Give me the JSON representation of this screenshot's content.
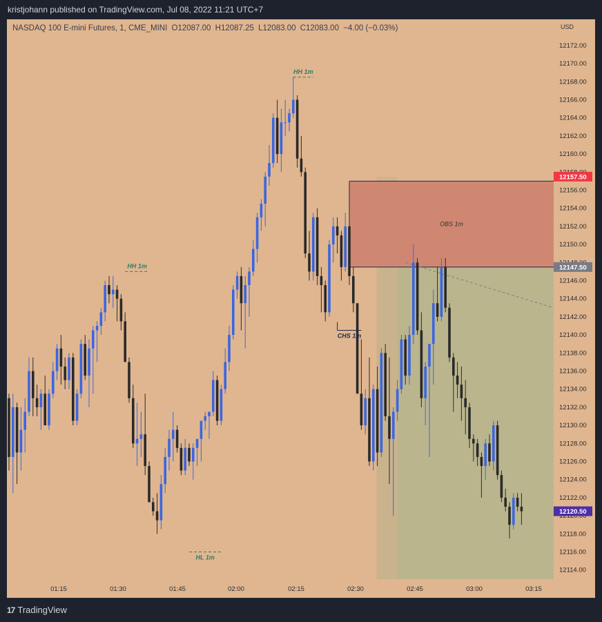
{
  "header": {
    "published": "kristjohann published on TradingView.com, Jul 08, 2022 11:21 UTC+7"
  },
  "symbol_bar": {
    "name": "NASDAQ 100 E-mini Futures, 1, CME_MINI",
    "open": "O12087.00",
    "high": "H12087.25",
    "low": "L12083.00",
    "close": "C12083.00",
    "change": "−4.00 (−0.03%)"
  },
  "currency": "USD",
  "footer": {
    "brand": "TradingView",
    "logo_mark": "17"
  },
  "colors": {
    "background": "#e0b690",
    "up_candle": "#3b66e0",
    "down_candle": "#2a2a2a",
    "obs_zone": "#cd8571",
    "green_zone": "#b8b58e",
    "label_green": "#2e7d66",
    "price_red": "#f23645",
    "price_gray": "#787b86",
    "price_purple": "#4d2ea6"
  },
  "chart_data": {
    "type": "candlestick",
    "title": "NASDAQ 100 E-mini Futures, 1, CME_MINI",
    "interval": "1",
    "x_ticks": [
      "01:15",
      "01:30",
      "01:45",
      "02:00",
      "02:15",
      "02:30",
      "02:45",
      "03:00",
      "03:15"
    ],
    "y_ticks": [
      12114.0,
      12116.0,
      12118.0,
      12120.0,
      12122.0,
      12124.0,
      12126.0,
      12128.0,
      12130.0,
      12132.0,
      12134.0,
      12136.0,
      12138.0,
      12140.0,
      12142.0,
      12144.0,
      12146.0,
      12148.0,
      12150.0,
      12152.0,
      12154.0,
      12156.0,
      12158.0,
      12160.0,
      12162.0,
      12164.0,
      12166.0,
      12168.0,
      12170.0,
      12172.0
    ],
    "ylim": [
      12113.0,
      12173.5
    ],
    "first_bar_time": "01:08",
    "candles_ohlc": [
      [
        12133.0,
        12133.5,
        12125.0,
        12126.5
      ],
      [
        12126.5,
        12133.5,
        12122.5,
        12132.0
      ],
      [
        12132.0,
        12132.5,
        12123.5,
        12127.0
      ],
      [
        12127.0,
        12132.0,
        12125.0,
        12129.5
      ],
      [
        12129.5,
        12133.0,
        12127.0,
        12131.5
      ],
      [
        12131.5,
        12137.5,
        12131.0,
        12136.0
      ],
      [
        12136.0,
        12137.5,
        12131.0,
        12133.0
      ],
      [
        12133.0,
        12134.5,
        12131.0,
        12132.0
      ],
      [
        12132.0,
        12134.0,
        12129.5,
        12133.5
      ],
      [
        12133.5,
        12135.5,
        12131.0,
        12130.0
      ],
      [
        12130.0,
        12134.0,
        12129.5,
        12133.5
      ],
      [
        12133.5,
        12137.0,
        12133.0,
        12136.0
      ],
      [
        12136.0,
        12139.0,
        12135.0,
        12138.5
      ],
      [
        12138.5,
        12140.0,
        12134.5,
        12136.5
      ],
      [
        12136.5,
        12137.5,
        12134.0,
        12135.0
      ],
      [
        12135.0,
        12138.0,
        12134.0,
        12137.5
      ],
      [
        12137.5,
        12138.0,
        12130.0,
        12130.5
      ],
      [
        12130.5,
        12134.0,
        12130.0,
        12133.5
      ],
      [
        12133.5,
        12139.5,
        12133.0,
        12139.0
      ],
      [
        12139.0,
        12140.0,
        12135.0,
        12135.5
      ],
      [
        12135.5,
        12139.5,
        12132.0,
        12138.5
      ],
      [
        12138.5,
        12141.0,
        12133.5,
        12140.5
      ],
      [
        12140.5,
        12141.5,
        12137.0,
        12141.0
      ],
      [
        12141.0,
        12143.0,
        12140.0,
        12142.5
      ],
      [
        12142.5,
        12146.0,
        12141.5,
        12145.5
      ],
      [
        12145.5,
        12146.5,
        12143.5,
        12144.5
      ],
      [
        12144.5,
        12146.5,
        12143.0,
        12145.0
      ],
      [
        12145.0,
        12145.5,
        12141.5,
        12144.0
      ],
      [
        12144.0,
        12144.5,
        12140.5,
        12141.5
      ],
      [
        12141.5,
        12142.5,
        12139.0,
        12137.0
      ],
      [
        12137.0,
        12137.5,
        12132.5,
        12133.0
      ],
      [
        12133.0,
        12134.5,
        12127.5,
        12128.0
      ],
      [
        12128.0,
        12132.5,
        12125.5,
        12128.5
      ],
      [
        12128.5,
        12131.5,
        12126.5,
        12129.0
      ],
      [
        12129.0,
        12133.5,
        12124.5,
        12125.5
      ],
      [
        12125.5,
        12126.0,
        12121.5,
        12121.5
      ],
      [
        12121.5,
        12122.0,
        12120.0,
        12120.5
      ],
      [
        12120.5,
        12122.5,
        12118.0,
        12119.5
      ],
      [
        12119.5,
        12124.5,
        12118.5,
        12123.5
      ],
      [
        12123.5,
        12127.5,
        12122.5,
        12126.5
      ],
      [
        12126.5,
        12129.5,
        12125.0,
        12128.5
      ],
      [
        12128.5,
        12131.5,
        12126.0,
        12129.5
      ],
      [
        12129.5,
        12130.0,
        12127.0,
        12127.5
      ],
      [
        12127.5,
        12128.0,
        12124.5,
        12125.0
      ],
      [
        12125.0,
        12128.5,
        12124.5,
        12127.5
      ],
      [
        12127.5,
        12128.0,
        12125.5,
        12126.0
      ],
      [
        12126.0,
        12128.0,
        12124.0,
        12127.5
      ],
      [
        12127.5,
        12128.5,
        12125.5,
        12128.5
      ],
      [
        12128.5,
        12130.5,
        12126.0,
        12130.5
      ],
      [
        12130.5,
        12131.5,
        12129.5,
        12131.0
      ],
      [
        12131.0,
        12131.5,
        12128.5,
        12131.5
      ],
      [
        12131.5,
        12136.0,
        12131.0,
        12135.0
      ],
      [
        12135.0,
        12135.5,
        12130.0,
        12130.5
      ],
      [
        12130.5,
        12134.5,
        12130.0,
        12134.0
      ],
      [
        12134.0,
        12138.5,
        12133.5,
        12137.0
      ],
      [
        12137.0,
        12141.0,
        12136.0,
        12140.0
      ],
      [
        12140.0,
        12145.5,
        12139.5,
        12145.0
      ],
      [
        12145.0,
        12147.0,
        12144.0,
        12146.5
      ],
      [
        12146.5,
        12147.5,
        12140.5,
        12143.5
      ],
      [
        12143.5,
        12146.5,
        12138.5,
        12145.5
      ],
      [
        12145.5,
        12147.5,
        12142.0,
        12147.0
      ],
      [
        12147.0,
        12150.5,
        12146.5,
        12149.5
      ],
      [
        12149.5,
        12153.5,
        12148.0,
        12153.0
      ],
      [
        12153.0,
        12155.0,
        12151.5,
        12154.5
      ],
      [
        12154.5,
        12158.0,
        12152.0,
        12157.5
      ],
      [
        12157.5,
        12161.0,
        12156.5,
        12159.0
      ],
      [
        12159.0,
        12164.5,
        12158.5,
        12164.0
      ],
      [
        12164.0,
        12166.0,
        12159.0,
        12160.0
      ],
      [
        12160.0,
        12165.0,
        12158.0,
        12163.5
      ],
      [
        12163.5,
        12166.0,
        12162.0,
        12163.5
      ],
      [
        12163.5,
        12165.0,
        12162.5,
        12164.5
      ],
      [
        12164.5,
        12168.5,
        12164.0,
        12166.0
      ],
      [
        12166.0,
        12166.5,
        12158.5,
        12159.5
      ],
      [
        12159.5,
        12162.0,
        12157.5,
        12158.0
      ],
      [
        12158.0,
        12158.5,
        12148.5,
        12149.0
      ],
      [
        12149.0,
        12151.5,
        12146.0,
        12147.0
      ],
      [
        12147.0,
        12153.5,
        12146.0,
        12153.0
      ],
      [
        12153.0,
        12154.0,
        12145.5,
        12146.5
      ],
      [
        12146.5,
        12147.5,
        12142.5,
        12145.5
      ],
      [
        12145.5,
        12146.0,
        12141.5,
        12142.5
      ],
      [
        12142.5,
        12150.5,
        12142.0,
        12150.0
      ],
      [
        12150.0,
        12153.0,
        12148.0,
        12152.0
      ],
      [
        12152.0,
        12153.0,
        12149.0,
        12151.0
      ],
      [
        12151.0,
        12151.5,
        12146.0,
        12147.5
      ],
      [
        12147.5,
        12153.5,
        12147.0,
        12152.0
      ],
      [
        12152.0,
        12153.5,
        12145.5,
        12146.5
      ],
      [
        12146.5,
        12147.5,
        12142.5,
        12143.5
      ],
      [
        12143.5,
        12143.5,
        12133.5,
        12133.5
      ],
      [
        12133.5,
        12139.5,
        12129.5,
        12130.0
      ],
      [
        12130.0,
        12134.0,
        12129.0,
        12133.0
      ],
      [
        12133.0,
        12137.5,
        12125.5,
        12126.0
      ],
      [
        12126.0,
        12134.5,
        12125.0,
        12134.0
      ],
      [
        12134.0,
        12136.5,
        12125.5,
        12127.0
      ],
      [
        12127.0,
        12138.5,
        12126.5,
        12138.0
      ],
      [
        12138.0,
        12139.0,
        12130.5,
        12131.0
      ],
      [
        12131.0,
        12137.5,
        12123.5,
        12128.5
      ],
      [
        12128.5,
        12132.0,
        12120.0,
        12131.5
      ],
      [
        12131.5,
        12135.0,
        12130.5,
        12134.0
      ],
      [
        12134.0,
        12140.0,
        12133.5,
        12139.5
      ],
      [
        12139.5,
        12140.0,
        12134.5,
        12135.5
      ],
      [
        12135.5,
        12141.0,
        12134.5,
        12140.0
      ],
      [
        12140.0,
        12150.0,
        12139.0,
        12148.0
      ],
      [
        12148.0,
        12148.5,
        12140.0,
        12140.5
      ],
      [
        12140.5,
        12142.5,
        12132.0,
        12133.0
      ],
      [
        12133.0,
        12137.0,
        12130.0,
        12136.5
      ],
      [
        12136.5,
        12139.0,
        12126.5,
        12139.0
      ],
      [
        12139.0,
        12145.0,
        12134.5,
        12143.5
      ],
      [
        12143.5,
        12147.5,
        12141.5,
        12142.0
      ],
      [
        12142.0,
        12148.5,
        12141.5,
        12147.5
      ],
      [
        12147.5,
        12148.5,
        12142.5,
        12143.0
      ],
      [
        12143.0,
        12143.5,
        12137.0,
        12137.5
      ],
      [
        12137.5,
        12138.0,
        12131.5,
        12135.5
      ],
      [
        12135.5,
        12137.0,
        12133.0,
        12134.5
      ],
      [
        12134.5,
        12136.5,
        12130.5,
        12133.0
      ],
      [
        12133.0,
        12135.0,
        12129.0,
        12132.0
      ],
      [
        12132.0,
        12132.5,
        12127.5,
        12128.5
      ],
      [
        12128.5,
        12129.0,
        12126.0,
        12128.0
      ],
      [
        12128.0,
        12128.5,
        12125.5,
        12126.5
      ],
      [
        12126.5,
        12127.0,
        12122.0,
        12125.5
      ],
      [
        12125.5,
        12128.5,
        12124.0,
        12128.0
      ],
      [
        12128.0,
        12129.0,
        12125.5,
        12126.0
      ],
      [
        12126.0,
        12130.5,
        12125.0,
        12130.0
      ],
      [
        12130.0,
        12130.5,
        12124.0,
        12124.5
      ],
      [
        12124.5,
        12125.0,
        12121.5,
        12122.0
      ],
      [
        12122.0,
        12123.0,
        12120.5,
        12121.0
      ],
      [
        12121.0,
        12121.5,
        12117.5,
        12119.0
      ],
      [
        12119.0,
        12122.5,
        12118.5,
        12122.0
      ],
      [
        12122.0,
        12122.5,
        12120.5,
        12121.0
      ],
      [
        12121.0,
        12122.5,
        12119.0,
        12120.5
      ]
    ],
    "levels": [
      {
        "label": "HH 1m",
        "price": 12147.0,
        "from_bar": 29,
        "to_bar": 35
      },
      {
        "label": "HL 1m",
        "price": 12116.0,
        "from_bar": 45,
        "to_bar": 53
      },
      {
        "label": "HH 1m",
        "price": 12168.5,
        "from_bar": 71,
        "to_bar": 76
      },
      {
        "label": "CHS 1m",
        "price": 12140.5,
        "from_bar": 82,
        "to_bar": 88
      }
    ],
    "zones": [
      {
        "label": "OBS 1m",
        "top": 12157.0,
        "bottom": 12147.5,
        "from_bar": 85,
        "extends_right": true
      },
      {
        "label": "",
        "top": 12157.5,
        "bottom": 12113.0,
        "from_bar": 92,
        "to_bar": 97,
        "color": "#d9ad8a"
      },
      {
        "label": "",
        "top": 12147.5,
        "bottom": 12113.0,
        "from_bar": 97,
        "extends_right": true
      }
    ],
    "trendline": {
      "from_bar": 99,
      "from_price": 12148.0,
      "to_bar": 136,
      "to_price": 12143.0
    },
    "price_labels": [
      {
        "value": "12157.50",
        "kind": "red"
      },
      {
        "value": "12147.50",
        "kind": "gray"
      },
      {
        "value": "12120.50",
        "kind": "purple"
      }
    ]
  }
}
